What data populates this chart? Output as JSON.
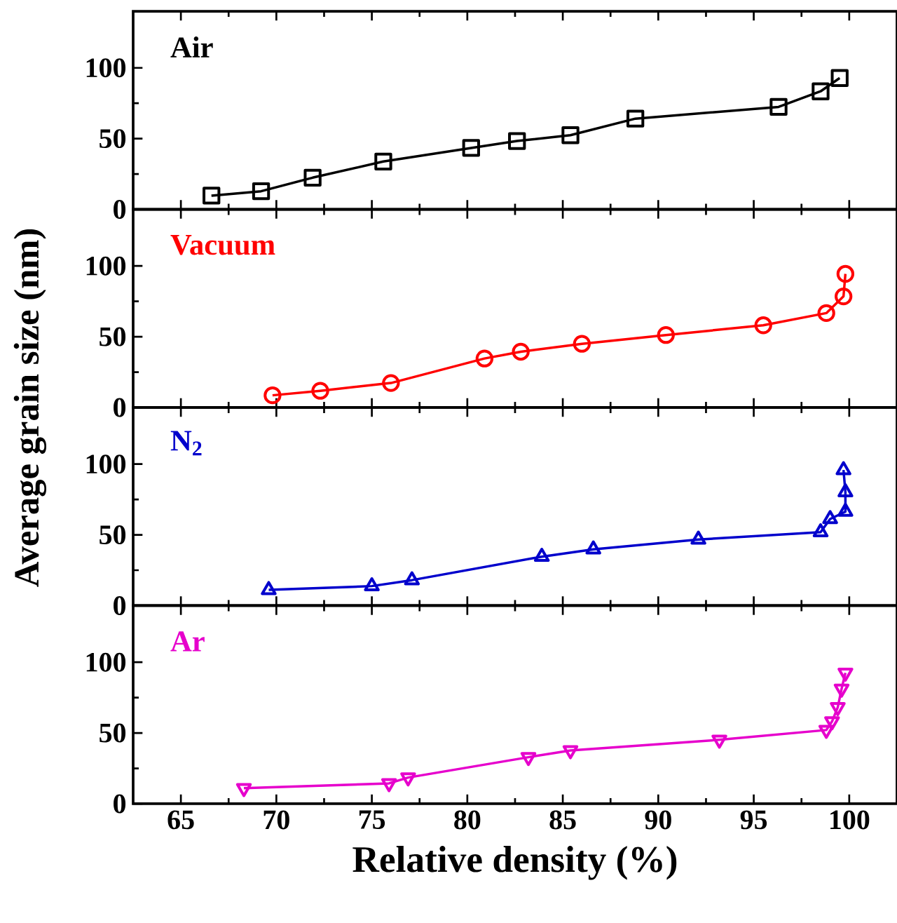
{
  "chart_data": [
    {
      "type": "line",
      "xlim": [
        62.5,
        102.5
      ],
      "ylim": [
        0,
        140
      ],
      "xticks": [
        65,
        70,
        75,
        80,
        85,
        90,
        95,
        100
      ],
      "yticks": [
        0,
        50,
        100
      ],
      "tick_labels": "y",
      "marker": "square",
      "line_style": "solid",
      "grid": false,
      "legend": "top left",
      "x": [
        66.6,
        69.2,
        71.9,
        75.6,
        80.2,
        82.6,
        85.4,
        88.8,
        96.3,
        98.5,
        99.5
      ],
      "series": [
        {
          "name": "Air",
          "color": "#000000",
          "values": [
            9.7,
            12.8,
            22.4,
            33.8,
            43.4,
            48.3,
            52.4,
            64.1,
            72.4,
            83.4,
            92.8
          ]
        }
      ]
    },
    {
      "type": "line",
      "xlim": [
        62.5,
        102.5
      ],
      "ylim": [
        0,
        140
      ],
      "xticks": [
        65,
        70,
        75,
        80,
        85,
        90,
        95,
        100
      ],
      "yticks": [
        0,
        50,
        100
      ],
      "tick_labels": "y",
      "marker": "circle",
      "line_style": "solid",
      "grid": false,
      "legend": "top left",
      "ylabel": "Average grain size (nm)",
      "x": [
        69.8,
        72.3,
        76.0,
        80.9,
        82.8,
        86.0,
        90.4,
        95.5,
        98.8,
        99.7,
        99.8
      ],
      "series": [
        {
          "name": "Vacuum",
          "color": "#ff0000",
          "values": [
            8.6,
            11.8,
            17.3,
            34.6,
            39.4,
            45.0,
            51.2,
            58.1,
            66.7,
            78.5,
            94.4
          ]
        }
      ]
    },
    {
      "type": "line",
      "xlim": [
        62.5,
        102.5
      ],
      "ylim": [
        0,
        140
      ],
      "xticks": [
        65,
        70,
        75,
        80,
        85,
        90,
        95,
        100
      ],
      "yticks": [
        0,
        50,
        100
      ],
      "tick_labels": "y",
      "marker": "triangle",
      "line_style": "solid",
      "grid": false,
      "legend": "top left",
      "x": [
        69.6,
        75.0,
        77.1,
        83.9,
        86.6,
        92.1,
        98.5,
        99.0,
        99.8,
        99.8,
        99.7
      ],
      "series": [
        {
          "name": "N$_{2}$",
          "color": "#0000cc",
          "values": [
            11.1,
            13.8,
            18.0,
            34.6,
            39.8,
            46.7,
            51.9,
            61.2,
            66.4,
            80.2,
            95.8
          ]
        }
      ]
    },
    {
      "type": "line",
      "xlim": [
        62.5,
        102.5
      ],
      "ylim": [
        0,
        140
      ],
      "xticks": [
        65,
        70,
        75,
        80,
        85,
        90,
        95,
        100
      ],
      "yticks": [
        0,
        50,
        100
      ],
      "marker": "triangle-down",
      "line_style": "solid",
      "grid": false,
      "legend": "top left",
      "xlabel": "Relative density (%)",
      "x": [
        68.3,
        75.9,
        76.9,
        83.2,
        85.4,
        93.2,
        98.8,
        99.1,
        99.4,
        99.6,
        99.8
      ],
      "series": [
        {
          "name": "Ar",
          "color": "#e600cc",
          "values": [
            11.0,
            14.4,
            18.5,
            32.9,
            37.7,
            45.2,
            52.1,
            58.2,
            68.2,
            81.2,
            92.5
          ]
        }
      ]
    }
  ]
}
